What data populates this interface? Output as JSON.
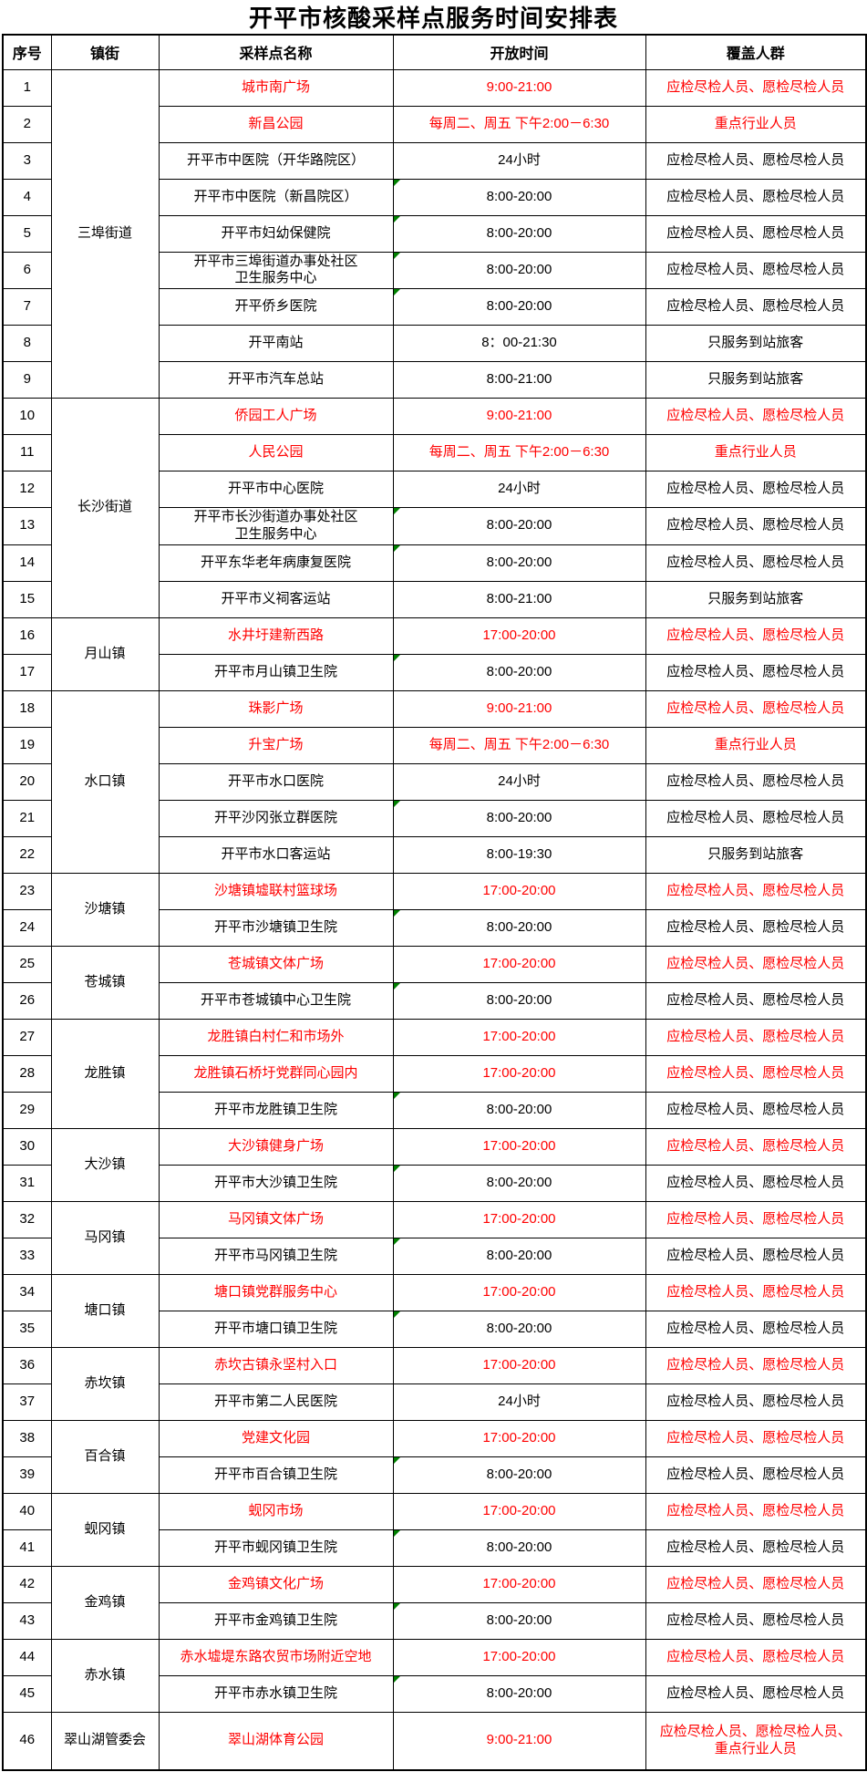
{
  "title": "开平市核酸采样点服务时间安排表",
  "header": {
    "index": "序号",
    "town": "镇街",
    "site": "采样点名称",
    "time": "开放时间",
    "coverage": "覆盖人群"
  },
  "colors": {
    "highlight_red": "#FF0000",
    "corner_marker_green": "#008000",
    "border_black": "#000000"
  },
  "groups": [
    {
      "town": "三埠街道",
      "rows": [
        {
          "no": "1",
          "site": "城市南广场",
          "time": "9:00-21:00",
          "coverage": "应检尽检人员、愿检尽检人员",
          "red": true
        },
        {
          "no": "2",
          "site": "新昌公园",
          "time": "每周二、周五 下午2:00－6:30",
          "coverage": "重点行业人员",
          "red": true
        },
        {
          "no": "3",
          "site": "开平市中医院（开华路院区）",
          "time": "24小时",
          "coverage": "应检尽检人员、愿检尽检人员"
        },
        {
          "no": "4",
          "site": "开平市中医院（新昌院区）",
          "time": "8:00-20:00",
          "coverage": "应检尽检人员、愿检尽检人员",
          "marker": true
        },
        {
          "no": "5",
          "site": "开平市妇幼保健院",
          "time": "8:00-20:00",
          "coverage": "应检尽检人员、愿检尽检人员",
          "marker": true
        },
        {
          "no": "6",
          "site": "开平市三埠街道办事处社区\n卫生服务中心",
          "time": "8:00-20:00",
          "coverage": "应检尽检人员、愿检尽检人员",
          "marker": true
        },
        {
          "no": "7",
          "site": "开平侨乡医院",
          "time": "8:00-20:00",
          "coverage": "应检尽检人员、愿检尽检人员",
          "marker": true
        },
        {
          "no": "8",
          "site": "开平南站",
          "time": "8：00-21:30",
          "coverage": "只服务到站旅客"
        },
        {
          "no": "9",
          "site": "开平市汽车总站",
          "time": "8:00-21:00",
          "coverage": "只服务到站旅客"
        }
      ]
    },
    {
      "town": "长沙街道",
      "rows": [
        {
          "no": "10",
          "site": "侨园工人广场",
          "time": "9:00-21:00",
          "coverage": "应检尽检人员、愿检尽检人员",
          "red": true
        },
        {
          "no": "11",
          "site": "人民公园",
          "time": "每周二、周五 下午2:00－6:30",
          "coverage": "重点行业人员",
          "red": true
        },
        {
          "no": "12",
          "site": "开平市中心医院",
          "time": "24小时",
          "coverage": "应检尽检人员、愿检尽检人员"
        },
        {
          "no": "13",
          "site": "开平市长沙街道办事处社区\n卫生服务中心",
          "time": "8:00-20:00",
          "coverage": "应检尽检人员、愿检尽检人员",
          "marker": true
        },
        {
          "no": "14",
          "site": "开平东华老年病康复医院",
          "time": "8:00-20:00",
          "coverage": "应检尽检人员、愿检尽检人员",
          "marker": true
        },
        {
          "no": "15",
          "site": "开平市义祠客运站",
          "time": "8:00-21:00",
          "coverage": "只服务到站旅客"
        }
      ]
    },
    {
      "town": "月山镇",
      "rows": [
        {
          "no": "16",
          "site": "水井圩建新西路",
          "time": "17:00-20:00",
          "coverage": "应检尽检人员、愿检尽检人员",
          "red": true
        },
        {
          "no": "17",
          "site": "开平市月山镇卫生院",
          "time": "8:00-20:00",
          "coverage": "应检尽检人员、愿检尽检人员",
          "marker": true
        }
      ]
    },
    {
      "town": "水口镇",
      "rows": [
        {
          "no": "18",
          "site": "珠影广场",
          "time": "9:00-21:00",
          "coverage": "应检尽检人员、愿检尽检人员",
          "red": true
        },
        {
          "no": "19",
          "site": "升宝广场",
          "time": "每周二、周五 下午2:00－6:30",
          "coverage": "重点行业人员",
          "red": true
        },
        {
          "no": "20",
          "site": "开平市水口医院",
          "time": "24小时",
          "coverage": "应检尽检人员、愿检尽检人员"
        },
        {
          "no": "21",
          "site": "开平沙冈张立群医院",
          "time": "8:00-20:00",
          "coverage": "应检尽检人员、愿检尽检人员",
          "marker": true
        },
        {
          "no": "22",
          "site": "开平市水口客运站",
          "time": "8:00-19:30",
          "coverage": "只服务到站旅客"
        }
      ]
    },
    {
      "town": "沙塘镇",
      "rows": [
        {
          "no": "23",
          "site": "沙塘镇墟联村篮球场",
          "time": "17:00-20:00",
          "coverage": "应检尽检人员、愿检尽检人员",
          "red": true
        },
        {
          "no": "24",
          "site": "开平市沙塘镇卫生院",
          "time": "8:00-20:00",
          "coverage": "应检尽检人员、愿检尽检人员",
          "marker": true
        }
      ]
    },
    {
      "town": "苍城镇",
      "rows": [
        {
          "no": "25",
          "site": "苍城镇文体广场",
          "time": "17:00-20:00",
          "coverage": "应检尽检人员、愿检尽检人员",
          "red": true
        },
        {
          "no": "26",
          "site": "开平市苍城镇中心卫生院",
          "time": "8:00-20:00",
          "coverage": "应检尽检人员、愿检尽检人员",
          "marker": true
        }
      ]
    },
    {
      "town": "龙胜镇",
      "rows": [
        {
          "no": "27",
          "site": "龙胜镇白村仁和市场外",
          "time": "17:00-20:00",
          "coverage": "应检尽检人员、愿检尽检人员",
          "red": true
        },
        {
          "no": "28",
          "site": "龙胜镇石桥圩党群同心园内",
          "time": "17:00-20:00",
          "coverage": "应检尽检人员、愿检尽检人员",
          "red": true
        },
        {
          "no": "29",
          "site": "开平市龙胜镇卫生院",
          "time": "8:00-20:00",
          "coverage": "应检尽检人员、愿检尽检人员",
          "marker": true
        }
      ]
    },
    {
      "town": "大沙镇",
      "rows": [
        {
          "no": "30",
          "site": "大沙镇健身广场",
          "time": "17:00-20:00",
          "coverage": "应检尽检人员、愿检尽检人员",
          "red": true
        },
        {
          "no": "31",
          "site": "开平市大沙镇卫生院",
          "time": "8:00-20:00",
          "coverage": "应检尽检人员、愿检尽检人员",
          "marker": true
        }
      ]
    },
    {
      "town": "马冈镇",
      "rows": [
        {
          "no": "32",
          "site": "马冈镇文体广场",
          "time": "17:00-20:00",
          "coverage": "应检尽检人员、愿检尽检人员",
          "red": true
        },
        {
          "no": "33",
          "site": "开平市马冈镇卫生院",
          "time": "8:00-20:00",
          "coverage": "应检尽检人员、愿检尽检人员",
          "marker": true
        }
      ]
    },
    {
      "town": "塘口镇",
      "rows": [
        {
          "no": "34",
          "site": "塘口镇党群服务中心",
          "time": "17:00-20:00",
          "coverage": "应检尽检人员、愿检尽检人员",
          "red": true
        },
        {
          "no": "35",
          "site": "开平市塘口镇卫生院",
          "time": "8:00-20:00",
          "coverage": "应检尽检人员、愿检尽检人员",
          "marker": true
        }
      ]
    },
    {
      "town": "赤坎镇",
      "rows": [
        {
          "no": "36",
          "site": "赤坎古镇永坚村入口",
          "time": "17:00-20:00",
          "coverage": "应检尽检人员、愿检尽检人员",
          "red": true
        },
        {
          "no": "37",
          "site": "开平市第二人民医院",
          "time": "24小时",
          "coverage": "应检尽检人员、愿检尽检人员"
        }
      ]
    },
    {
      "town": "百合镇",
      "rows": [
        {
          "no": "38",
          "site": "党建文化园",
          "time": "17:00-20:00",
          "coverage": "应检尽检人员、愿检尽检人员",
          "red": true
        },
        {
          "no": "39",
          "site": "开平市百合镇卫生院",
          "time": "8:00-20:00",
          "coverage": "应检尽检人员、愿检尽检人员",
          "marker": true
        }
      ]
    },
    {
      "town": "蚬冈镇",
      "rows": [
        {
          "no": "40",
          "site": "蚬冈市场",
          "time": "17:00-20:00",
          "coverage": "应检尽检人员、愿检尽检人员",
          "red": true
        },
        {
          "no": "41",
          "site": "开平市蚬冈镇卫生院",
          "time": "8:00-20:00",
          "coverage": "应检尽检人员、愿检尽检人员",
          "marker": true
        }
      ]
    },
    {
      "town": "金鸡镇",
      "rows": [
        {
          "no": "42",
          "site": "金鸡镇文化广场",
          "time": "17:00-20:00",
          "coverage": "应检尽检人员、愿检尽检人员",
          "red": true
        },
        {
          "no": "43",
          "site": "开平市金鸡镇卫生院",
          "time": "8:00-20:00",
          "coverage": "应检尽检人员、愿检尽检人员",
          "marker": true
        }
      ]
    },
    {
      "town": "赤水镇",
      "rows": [
        {
          "no": "44",
          "site": "赤水墟堤东路农贸市场附近空地",
          "time": "17:00-20:00",
          "coverage": "应检尽检人员、愿检尽检人员",
          "red": true
        },
        {
          "no": "45",
          "site": "开平市赤水镇卫生院",
          "time": "8:00-20:00",
          "coverage": "应检尽检人员、愿检尽检人员",
          "marker": true
        }
      ]
    },
    {
      "town": "翠山湖管委会",
      "rows": [
        {
          "no": "46",
          "site": "翠山湖体育公园",
          "time": "9:00-21:00",
          "coverage": "应检尽检人员、愿检尽检人员、\n重点行业人员",
          "red": true,
          "tall": true
        }
      ]
    }
  ]
}
